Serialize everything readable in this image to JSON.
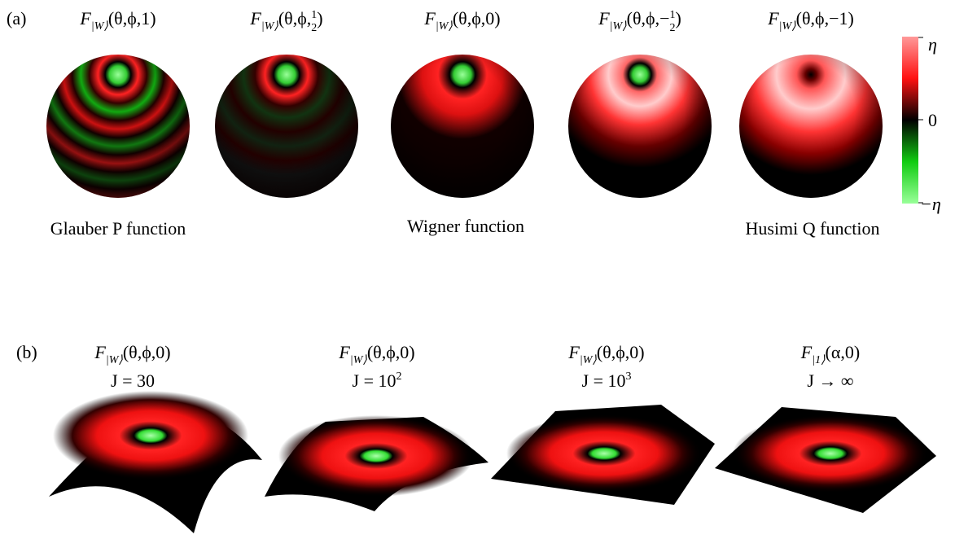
{
  "panel_a": {
    "label": "(a)",
    "plots": [
      {
        "f": "F",
        "sub": "|W⟩",
        "args": "(θ,ϕ,1)"
      },
      {
        "f": "F",
        "sub": "|W⟩",
        "args": "(θ,ϕ,",
        "num": "1",
        "den": "2",
        "close": ")"
      },
      {
        "f": "F",
        "sub": "|W⟩",
        "args": "(θ,ϕ,0)"
      },
      {
        "f": "F",
        "sub": "|W⟩",
        "args": "(θ,ϕ,−",
        "num": "1",
        "den": "2",
        "close": ")"
      },
      {
        "f": "F",
        "sub": "|W⟩",
        "args": "(θ,ϕ,−1)"
      }
    ],
    "captions": [
      "Glauber P function",
      "Wigner function",
      "Husimi Q function"
    ],
    "colorbar": [
      "η",
      "0",
      "−η"
    ]
  },
  "panel_b": {
    "label": "(b)",
    "plots": [
      {
        "title": {
          "f": "F",
          "sub": "|W⟩",
          "args": "(θ,ϕ,0)"
        },
        "j": {
          "text": "J = 30"
        }
      },
      {
        "title": {
          "f": "F",
          "sub": "|W⟩",
          "args": "(θ,ϕ,0)"
        },
        "j": {
          "text": "J = 10",
          "sup": "2"
        }
      },
      {
        "title": {
          "f": "F",
          "sub": "|W⟩",
          "args": "(θ,ϕ,0)"
        },
        "j": {
          "text": "J = 10",
          "sup": "3"
        }
      },
      {
        "title": {
          "f": "F",
          "sub": "|1⟩",
          "args": "(α,0)"
        },
        "j": {
          "text": "J → ∞"
        }
      }
    ]
  }
}
